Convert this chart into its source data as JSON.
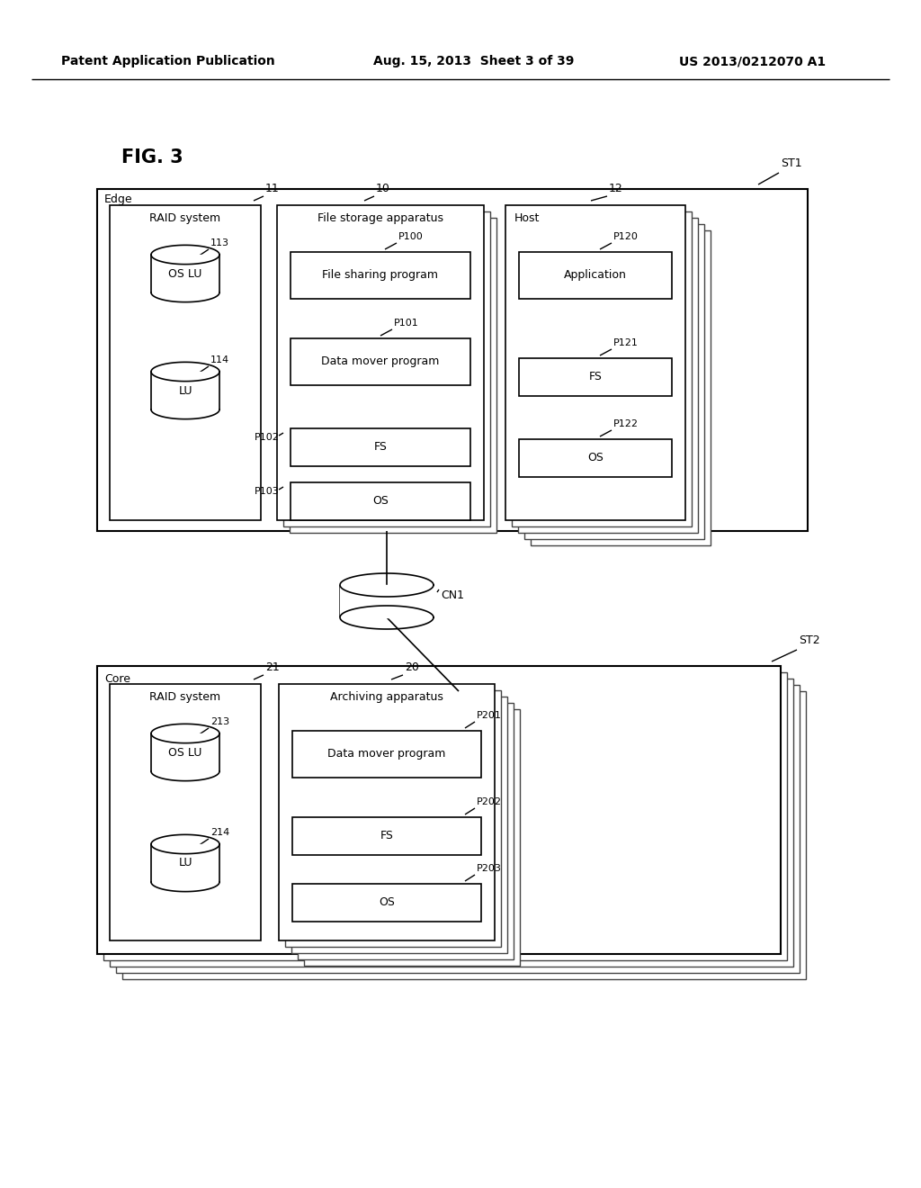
{
  "header_left": "Patent Application Publication",
  "header_mid": "Aug. 15, 2013  Sheet 3 of 39",
  "header_right": "US 2013/0212070 A1",
  "fig_label": "FIG. 3",
  "bg_color": "#ffffff",
  "line_color": "#000000",
  "box_fill": "#ffffff",
  "text_color": "#000000"
}
